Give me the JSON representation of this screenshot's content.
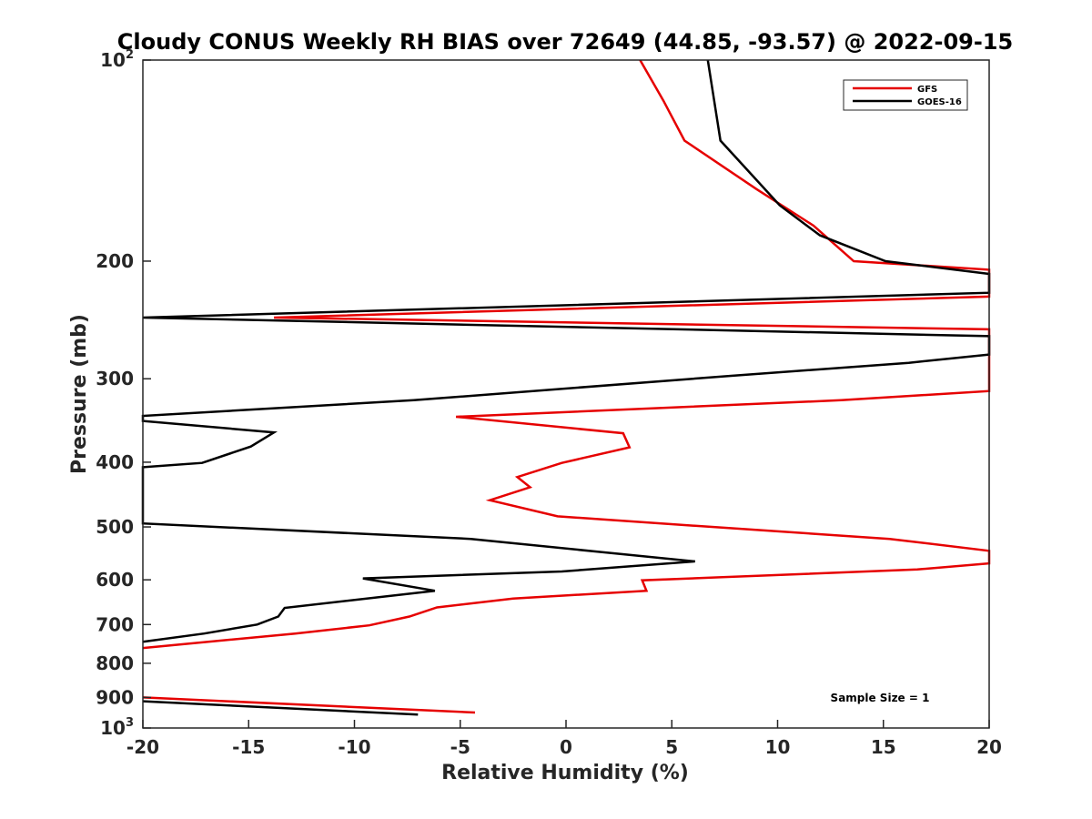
{
  "chart_data": {
    "type": "line",
    "title": "Cloudy CONUS Weekly RH BIAS over 72649 (44.85, -93.57) @ 2022-09-15",
    "xlabel": "Relative Humidity (%)",
    "ylabel": "Pressure (mb)",
    "xlim": [
      -20,
      20
    ],
    "ylim": [
      100,
      1000
    ],
    "y_scale": "log",
    "y_reversed": true,
    "grid": false,
    "legend_position": "top-right",
    "x_ticks": [
      "-20",
      "-15",
      "-10",
      "-5",
      "0",
      "5",
      "10",
      "15",
      "20"
    ],
    "y_tick_values": [
      100,
      200,
      300,
      400,
      500,
      600,
      700,
      800,
      900,
      1000
    ],
    "y_ticks": [
      {
        "base": "10",
        "exp": "2"
      },
      {
        "base": "200",
        "exp": ""
      },
      {
        "base": "300",
        "exp": ""
      },
      {
        "base": "400",
        "exp": ""
      },
      {
        "base": "500",
        "exp": ""
      },
      {
        "base": "600",
        "exp": ""
      },
      {
        "base": "700",
        "exp": ""
      },
      {
        "base": "800",
        "exp": ""
      },
      {
        "base": "900",
        "exp": ""
      },
      {
        "base": "10",
        "exp": "3"
      }
    ],
    "annotation": "Sample Size = 1",
    "series": [
      {
        "name": "GFS",
        "color": "#e60000",
        "points": [
          [
            3.5,
            100
          ],
          [
            4.6,
            115
          ],
          [
            5.6,
            132
          ],
          [
            9.0,
            156
          ],
          [
            11.7,
            177
          ],
          [
            13.6,
            200
          ],
          [
            20,
            206
          ],
          [
            20,
            226
          ],
          [
            -13.8,
            243
          ],
          [
            20,
            253
          ],
          [
            20,
            313
          ],
          [
            13.0,
            323
          ],
          [
            -5.2,
            342
          ],
          [
            2.7,
            362
          ],
          [
            3.0,
            380
          ],
          [
            -0.2,
            401
          ],
          [
            -2.3,
            421
          ],
          [
            -1.7,
            436
          ],
          [
            -3.6,
            456
          ],
          [
            -0.4,
            482
          ],
          [
            6.5,
            499
          ],
          [
            15.3,
            521
          ],
          [
            20,
            543
          ],
          [
            20,
            567
          ],
          [
            16.6,
            579
          ],
          [
            3.6,
            601
          ],
          [
            3.8,
            623
          ],
          [
            -2.5,
            640
          ],
          [
            -6.1,
            660
          ],
          [
            -7.4,
            681
          ],
          [
            -9.3,
            702
          ],
          [
            -12.8,
            722
          ],
          [
            -20,
            759
          ]
        ],
        "segments2": [
          [
            [
              -20,
              900
            ],
            [
              -4.3,
              948
            ]
          ]
        ]
      },
      {
        "name": "GOES-16",
        "color": "#000000",
        "points": [
          [
            6.7,
            100
          ],
          [
            7.0,
            115
          ],
          [
            7.3,
            132
          ],
          [
            10.1,
            165
          ],
          [
            12.0,
            183
          ],
          [
            15.1,
            200
          ],
          [
            20,
            209
          ],
          [
            20,
            223
          ],
          [
            -20,
            243
          ],
          [
            20,
            259
          ],
          [
            20,
            276
          ],
          [
            16.2,
            284
          ],
          [
            7.8,
            297
          ],
          [
            -7.2,
            323
          ],
          [
            -20,
            341
          ],
          [
            -20,
            347
          ],
          [
            -13.8,
            361
          ],
          [
            -14.9,
            379
          ],
          [
            -17.2,
            401
          ],
          [
            -20,
            407
          ],
          [
            -20,
            494
          ],
          [
            -4.5,
            521
          ],
          [
            1.6,
            545
          ],
          [
            6.1,
            563
          ],
          [
            -0.2,
            583
          ],
          [
            -9.6,
            597
          ],
          [
            -6.2,
            623
          ],
          [
            -13.3,
            661
          ],
          [
            -13.6,
            681
          ],
          [
            -14.6,
            700
          ],
          [
            -17.1,
            722
          ],
          [
            -20,
            743
          ]
        ],
        "segments2": [
          [
            [
              -20,
              912
            ],
            [
              -7.0,
              955
            ]
          ]
        ]
      }
    ]
  }
}
